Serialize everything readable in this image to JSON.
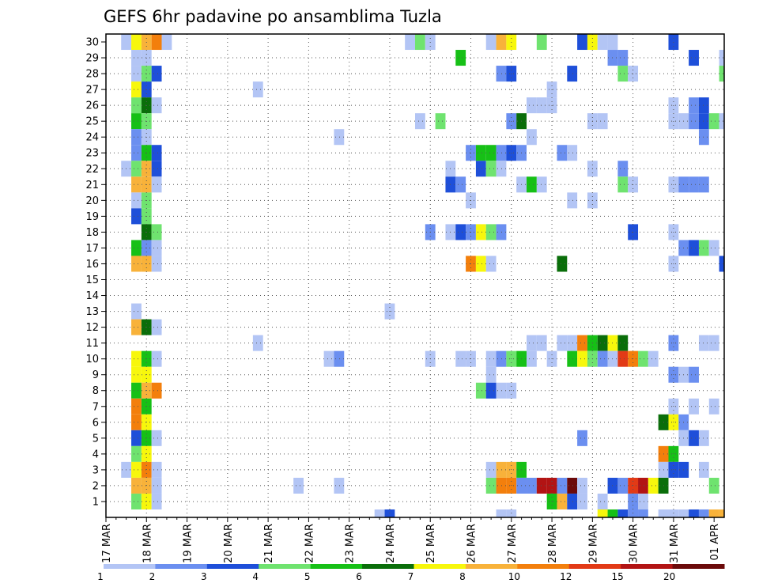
{
  "chart_data": {
    "type": "heatmap",
    "title": "GEFS 6hr padavine po ansamblima Tuzla",
    "xlabel": "",
    "ylabel": "",
    "x_ticks": [
      "17 MAR",
      "18 MAR",
      "19 MAR",
      "20 MAR",
      "21 MAR",
      "22 MAR",
      "23 MAR",
      "24 MAR",
      "25 MAR",
      "26 MAR",
      "27 MAR",
      "28 MAR",
      "29 MAR",
      "30 MAR",
      "31 MAR",
      "01 APR"
    ],
    "y_ticks": [
      "1",
      "2",
      "3",
      "4",
      "5",
      "6",
      "7",
      "8",
      "9",
      "10",
      "11",
      "12",
      "13",
      "14",
      "15",
      "16",
      "17",
      "18",
      "19",
      "20",
      "21",
      "22",
      "23",
      "24",
      "25",
      "26",
      "27",
      "28",
      "29",
      "30"
    ],
    "time_steps": 61,
    "time_step_hours": 6,
    "grid": "dotted",
    "colorbar": {
      "position": "bottom",
      "bounds": [
        "1",
        "2",
        "3",
        "4",
        "5",
        "6",
        "7",
        "8",
        "10",
        "12",
        "15",
        "20"
      ],
      "colors": [
        "#b3c5f5",
        "#6b8ff0",
        "#1e4fd9",
        "#6fe36f",
        "#16c016",
        "#0a6e0a",
        "#f7f70c",
        "#f8b23a",
        "#f37f0c",
        "#e23a16",
        "#b21414",
        "#6b0a0a"
      ]
    },
    "cells": [
      [
        30,
        2,
        0
      ],
      [
        30,
        3,
        6
      ],
      [
        30,
        4,
        7
      ],
      [
        30,
        5,
        8
      ],
      [
        30,
        6,
        0
      ],
      [
        30,
        30,
        0
      ],
      [
        30,
        31,
        3
      ],
      [
        30,
        32,
        0
      ],
      [
        30,
        38,
        0
      ],
      [
        30,
        39,
        7
      ],
      [
        30,
        40,
        6
      ],
      [
        30,
        43,
        3
      ],
      [
        30,
        47,
        2
      ],
      [
        30,
        48,
        6
      ],
      [
        30,
        49,
        0
      ],
      [
        30,
        50,
        0
      ],
      [
        30,
        56,
        2
      ],
      [
        29,
        3,
        0
      ],
      [
        29,
        4,
        0
      ],
      [
        29,
        35,
        4
      ],
      [
        29,
        50,
        1
      ],
      [
        29,
        51,
        1
      ],
      [
        29,
        58,
        2
      ],
      [
        29,
        61,
        0
      ],
      [
        28,
        3,
        0
      ],
      [
        28,
        4,
        3
      ],
      [
        28,
        5,
        2
      ],
      [
        28,
        39,
        1
      ],
      [
        28,
        40,
        2
      ],
      [
        28,
        46,
        2
      ],
      [
        28,
        51,
        3
      ],
      [
        28,
        52,
        0
      ],
      [
        28,
        61,
        3
      ],
      [
        27,
        3,
        6
      ],
      [
        27,
        4,
        2
      ],
      [
        27,
        15,
        0
      ],
      [
        27,
        44,
        0
      ],
      [
        26,
        3,
        3
      ],
      [
        26,
        4,
        5
      ],
      [
        26,
        5,
        0
      ],
      [
        26,
        42,
        0
      ],
      [
        26,
        43,
        0
      ],
      [
        26,
        44,
        0
      ],
      [
        26,
        56,
        0
      ],
      [
        26,
        58,
        1
      ],
      [
        26,
        59,
        2
      ],
      [
        25,
        3,
        4
      ],
      [
        25,
        4,
        3
      ],
      [
        25,
        31,
        0
      ],
      [
        25,
        33,
        3
      ],
      [
        25,
        40,
        1
      ],
      [
        25,
        41,
        5
      ],
      [
        25,
        48,
        0
      ],
      [
        25,
        49,
        0
      ],
      [
        25,
        56,
        0
      ],
      [
        25,
        57,
        0
      ],
      [
        25,
        58,
        1
      ],
      [
        25,
        59,
        2
      ],
      [
        25,
        60,
        3
      ],
      [
        25,
        61,
        0
      ],
      [
        24,
        3,
        1
      ],
      [
        24,
        4,
        0
      ],
      [
        24,
        23,
        0
      ],
      [
        24,
        42,
        0
      ],
      [
        24,
        59,
        1
      ],
      [
        23,
        3,
        1
      ],
      [
        23,
        4,
        4
      ],
      [
        23,
        5,
        2
      ],
      [
        23,
        36,
        1
      ],
      [
        23,
        37,
        4
      ],
      [
        23,
        38,
        4
      ],
      [
        23,
        39,
        1
      ],
      [
        23,
        40,
        2
      ],
      [
        23,
        41,
        1
      ],
      [
        23,
        45,
        1
      ],
      [
        23,
        46,
        0
      ],
      [
        22,
        2,
        0
      ],
      [
        22,
        3,
        3
      ],
      [
        22,
        4,
        7
      ],
      [
        22,
        5,
        2
      ],
      [
        22,
        34,
        0
      ],
      [
        22,
        37,
        2
      ],
      [
        22,
        38,
        3
      ],
      [
        22,
        39,
        0
      ],
      [
        22,
        48,
        0
      ],
      [
        22,
        51,
        1
      ],
      [
        21,
        3,
        7
      ],
      [
        21,
        4,
        7
      ],
      [
        21,
        5,
        0
      ],
      [
        21,
        34,
        2
      ],
      [
        21,
        35,
        1
      ],
      [
        21,
        41,
        0
      ],
      [
        21,
        42,
        4
      ],
      [
        21,
        43,
        0
      ],
      [
        21,
        51,
        3
      ],
      [
        21,
        52,
        0
      ],
      [
        21,
        56,
        0
      ],
      [
        21,
        57,
        1
      ],
      [
        21,
        58,
        1
      ],
      [
        21,
        59,
        1
      ],
      [
        20,
        3,
        0
      ],
      [
        20,
        4,
        3
      ],
      [
        20,
        36,
        0
      ],
      [
        20,
        46,
        0
      ],
      [
        20,
        48,
        0
      ],
      [
        19,
        3,
        2
      ],
      [
        19,
        4,
        3
      ],
      [
        18,
        4,
        5
      ],
      [
        18,
        5,
        3
      ],
      [
        18,
        32,
        1
      ],
      [
        18,
        34,
        0
      ],
      [
        18,
        35,
        2
      ],
      [
        18,
        36,
        1
      ],
      [
        18,
        37,
        6
      ],
      [
        18,
        38,
        3
      ],
      [
        18,
        39,
        1
      ],
      [
        18,
        52,
        2
      ],
      [
        18,
        56,
        0
      ],
      [
        17,
        3,
        4
      ],
      [
        17,
        4,
        1
      ],
      [
        17,
        5,
        0
      ],
      [
        17,
        57,
        1
      ],
      [
        17,
        58,
        2
      ],
      [
        17,
        59,
        3
      ],
      [
        17,
        60,
        0
      ],
      [
        16,
        3,
        7
      ],
      [
        16,
        4,
        7
      ],
      [
        16,
        5,
        0
      ],
      [
        16,
        36,
        8
      ],
      [
        16,
        37,
        6
      ],
      [
        16,
        38,
        0
      ],
      [
        16,
        45,
        5
      ],
      [
        16,
        56,
        0
      ],
      [
        16,
        61,
        2
      ],
      [
        13,
        3,
        0
      ],
      [
        13,
        28,
        0
      ],
      [
        12,
        3,
        7
      ],
      [
        12,
        4,
        5
      ],
      [
        12,
        5,
        0
      ],
      [
        11,
        15,
        0
      ],
      [
        11,
        42,
        0
      ],
      [
        11,
        43,
        0
      ],
      [
        11,
        45,
        0
      ],
      [
        11,
        46,
        0
      ],
      [
        11,
        47,
        8
      ],
      [
        11,
        48,
        4
      ],
      [
        11,
        49,
        5
      ],
      [
        11,
        50,
        6
      ],
      [
        11,
        51,
        5
      ],
      [
        11,
        56,
        1
      ],
      [
        11,
        59,
        0
      ],
      [
        11,
        60,
        0
      ],
      [
        10,
        3,
        6
      ],
      [
        10,
        4,
        4
      ],
      [
        10,
        5,
        0
      ],
      [
        10,
        22,
        0
      ],
      [
        10,
        23,
        1
      ],
      [
        10,
        32,
        0
      ],
      [
        10,
        35,
        0
      ],
      [
        10,
        36,
        0
      ],
      [
        10,
        38,
        0
      ],
      [
        10,
        39,
        1
      ],
      [
        10,
        40,
        3
      ],
      [
        10,
        41,
        4
      ],
      [
        10,
        42,
        0
      ],
      [
        10,
        44,
        0
      ],
      [
        10,
        46,
        4
      ],
      [
        10,
        47,
        6
      ],
      [
        10,
        48,
        3
      ],
      [
        10,
        49,
        1
      ],
      [
        10,
        50,
        0
      ],
      [
        10,
        51,
        9
      ],
      [
        10,
        52,
        8
      ],
      [
        10,
        53,
        3
      ],
      [
        10,
        54,
        0
      ],
      [
        9,
        3,
        6
      ],
      [
        9,
        4,
        6
      ],
      [
        9,
        38,
        0
      ],
      [
        9,
        56,
        1
      ],
      [
        9,
        57,
        0
      ],
      [
        9,
        58,
        1
      ],
      [
        8,
        3,
        4
      ],
      [
        8,
        4,
        7
      ],
      [
        8,
        5,
        8
      ],
      [
        8,
        37,
        3
      ],
      [
        8,
        38,
        2
      ],
      [
        8,
        39,
        0
      ],
      [
        8,
        40,
        0
      ],
      [
        7,
        3,
        8
      ],
      [
        7,
        4,
        4
      ],
      [
        7,
        56,
        0
      ],
      [
        7,
        58,
        0
      ],
      [
        7,
        60,
        0
      ],
      [
        6,
        3,
        8
      ],
      [
        6,
        4,
        6
      ],
      [
        6,
        55,
        5
      ],
      [
        6,
        56,
        6
      ],
      [
        6,
        57,
        1
      ],
      [
        5,
        3,
        2
      ],
      [
        5,
        4,
        4
      ],
      [
        5,
        5,
        0
      ],
      [
        5,
        47,
        1
      ],
      [
        5,
        57,
        0
      ],
      [
        5,
        58,
        2
      ],
      [
        5,
        59,
        0
      ],
      [
        4,
        3,
        3
      ],
      [
        4,
        4,
        6
      ],
      [
        4,
        55,
        8
      ],
      [
        4,
        56,
        4
      ],
      [
        3,
        2,
        0
      ],
      [
        3,
        3,
        6
      ],
      [
        3,
        4,
        8
      ],
      [
        3,
        5,
        0
      ],
      [
        3,
        38,
        0
      ],
      [
        3,
        39,
        7
      ],
      [
        3,
        40,
        7
      ],
      [
        3,
        41,
        4
      ],
      [
        3,
        55,
        0
      ],
      [
        3,
        56,
        2
      ],
      [
        3,
        57,
        2
      ],
      [
        3,
        59,
        0
      ],
      [
        2,
        3,
        7
      ],
      [
        2,
        4,
        7
      ],
      [
        2,
        5,
        0
      ],
      [
        2,
        19,
        0
      ],
      [
        2,
        23,
        0
      ],
      [
        2,
        38,
        3
      ],
      [
        2,
        39,
        8
      ],
      [
        2,
        40,
        8
      ],
      [
        2,
        41,
        1
      ],
      [
        2,
        42,
        1
      ],
      [
        2,
        43,
        10
      ],
      [
        2,
        44,
        10
      ],
      [
        2,
        45,
        1
      ],
      [
        2,
        46,
        11
      ],
      [
        2,
        47,
        0
      ],
      [
        2,
        50,
        2
      ],
      [
        2,
        51,
        1
      ],
      [
        2,
        52,
        9
      ],
      [
        2,
        53,
        10
      ],
      [
        2,
        54,
        6
      ],
      [
        2,
        55,
        5
      ],
      [
        2,
        60,
        3
      ],
      [
        1,
        3,
        3
      ],
      [
        1,
        4,
        6
      ],
      [
        1,
        5,
        0
      ],
      [
        1,
        44,
        4
      ],
      [
        1,
        45,
        7
      ],
      [
        1,
        46,
        2
      ],
      [
        1,
        47,
        0
      ],
      [
        1,
        49,
        0
      ],
      [
        1,
        52,
        1
      ],
      [
        1,
        53,
        0
      ],
      [
        0,
        27,
        0
      ],
      [
        0,
        28,
        2
      ],
      [
        0,
        39,
        0
      ],
      [
        0,
        40,
        0
      ],
      [
        0,
        49,
        6
      ],
      [
        0,
        50,
        4
      ],
      [
        0,
        51,
        2
      ],
      [
        0,
        52,
        1
      ],
      [
        0,
        53,
        1
      ],
      [
        0,
        55,
        0
      ],
      [
        0,
        56,
        0
      ],
      [
        0,
        57,
        0
      ],
      [
        0,
        58,
        2
      ],
      [
        0,
        59,
        1
      ],
      [
        0,
        60,
        7
      ],
      [
        0,
        61,
        7
      ]
    ]
  }
}
